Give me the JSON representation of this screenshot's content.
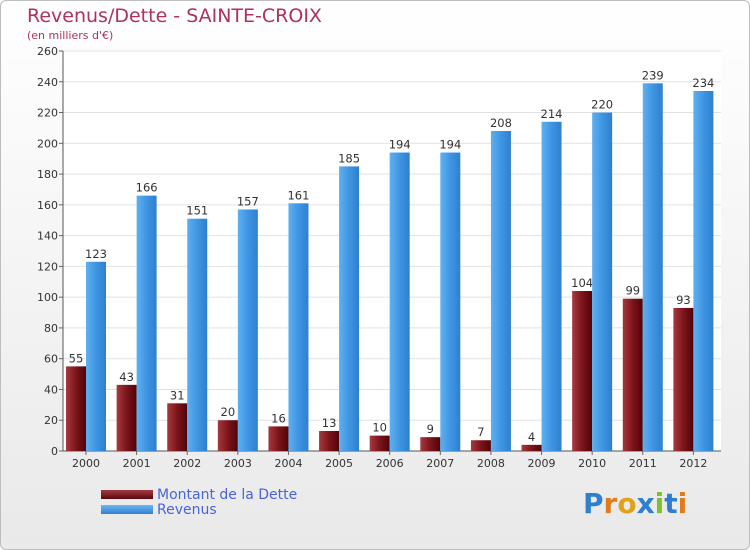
{
  "chart_data": {
    "type": "bar",
    "title": "Revenus/Dette - SAINTE-CROIX",
    "subtitle": "(en milliers d'€)",
    "categories": [
      "2000",
      "2001",
      "2002",
      "2003",
      "2004",
      "2005",
      "2006",
      "2007",
      "2008",
      "2009",
      "2010",
      "2011",
      "2012"
    ],
    "series": [
      {
        "name": "Montant de la Dette",
        "color": "#7a0f17",
        "values": [
          55,
          43,
          31,
          20,
          16,
          13,
          10,
          9,
          7,
          4,
          104,
          99,
          93
        ]
      },
      {
        "name": "Revenus",
        "color": "#3c8fe0",
        "values": [
          123,
          166,
          151,
          157,
          161,
          185,
          194,
          194,
          208,
          214,
          220,
          239,
          234
        ]
      }
    ],
    "ylim": [
      0,
      260
    ],
    "yticks": [
      0,
      20,
      40,
      60,
      80,
      100,
      120,
      140,
      160,
      180,
      200,
      220,
      240,
      260
    ],
    "grid": true,
    "legend_position": "bottom-left"
  },
  "logo": {
    "letters": [
      "P",
      "r",
      "o",
      "x",
      "i",
      "t",
      "i"
    ],
    "colors": [
      "#2f7fd1",
      "#e07a1c",
      "#e0a21c",
      "#2f7fd1",
      "#7fbf2a",
      "#2f7fd1",
      "#e07a1c"
    ]
  }
}
